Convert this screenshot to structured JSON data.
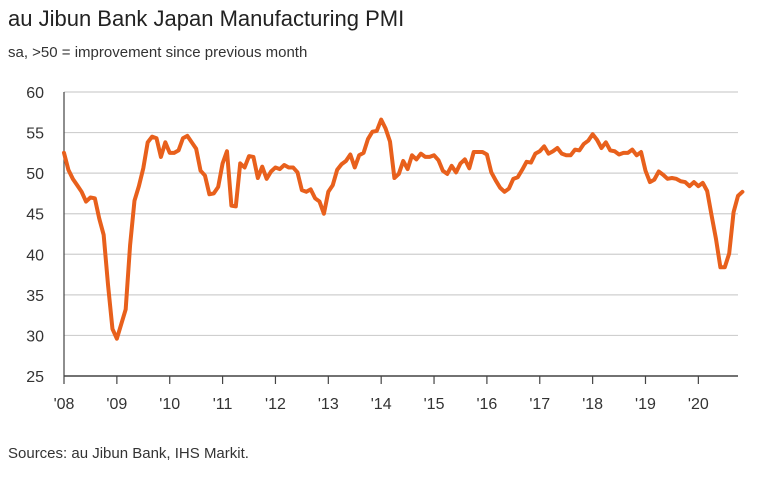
{
  "chart_data": {
    "type": "line",
    "title": "au Jibun Bank Japan Manufacturing PMI",
    "subtitle": "sa, >50 = improvement since previous month",
    "source": "Sources: au Jibun Bank, IHS Markit.",
    "xlabel": "",
    "ylabel": "",
    "ylim": [
      25,
      60
    ],
    "yticks": [
      25,
      30,
      35,
      40,
      45,
      50,
      55,
      60
    ],
    "xlim": [
      2008.0,
      2020.75
    ],
    "xticks": [
      {
        "value": 2008,
        "label": "'08"
      },
      {
        "value": 2009,
        "label": "'09"
      },
      {
        "value": 2010,
        "label": "'10"
      },
      {
        "value": 2011,
        "label": "'11"
      },
      {
        "value": 2012,
        "label": "'12"
      },
      {
        "value": 2013,
        "label": "'13"
      },
      {
        "value": 2014,
        "label": "'14"
      },
      {
        "value": 2015,
        "label": "'15"
      },
      {
        "value": 2016,
        "label": "'16"
      },
      {
        "value": 2017,
        "label": "'17"
      },
      {
        "value": 2018,
        "label": "'18"
      },
      {
        "value": 2019,
        "label": "'19"
      },
      {
        "value": 2020,
        "label": "'20"
      }
    ],
    "grid": true,
    "line_color": "#e8601c",
    "grid_color": "#cfcfcf",
    "series": [
      {
        "name": "Japan Manufacturing PMI",
        "start_year": 2008,
        "start_month": 1,
        "values": [
          52.5,
          50.4,
          49.3,
          48.5,
          47.7,
          46.5,
          47.0,
          46.9,
          44.4,
          42.4,
          36.2,
          30.8,
          29.6,
          31.4,
          33.2,
          41.1,
          46.6,
          48.4,
          50.6,
          53.8,
          54.5,
          54.3,
          52.0,
          53.8,
          52.5,
          52.5,
          52.8,
          54.3,
          54.6,
          53.8,
          53.0,
          50.3,
          49.7,
          47.4,
          47.5,
          48.3,
          51.2,
          52.7,
          46.0,
          45.9,
          51.2,
          50.7,
          52.1,
          52.0,
          49.4,
          50.8,
          49.3,
          50.2,
          50.7,
          50.5,
          51.0,
          50.7,
          50.7,
          50.1,
          47.9,
          47.7,
          48.0,
          46.9,
          46.5,
          45.0,
          47.7,
          48.5,
          50.4,
          51.1,
          51.5,
          52.3,
          50.7,
          52.2,
          52.5,
          54.2,
          55.1,
          55.2,
          56.6,
          55.5,
          53.9,
          49.4,
          49.9,
          51.5,
          50.5,
          52.2,
          51.7,
          52.4,
          52.0,
          52.0,
          52.2,
          51.6,
          50.3,
          49.9,
          50.9,
          50.1,
          51.2,
          51.7,
          50.6,
          52.6,
          52.6,
          52.6,
          52.3,
          50.1,
          49.1,
          48.2,
          47.7,
          48.1,
          49.3,
          49.5,
          50.4,
          51.4,
          51.3,
          52.4,
          52.7,
          53.3,
          52.4,
          52.7,
          53.1,
          52.4,
          52.2,
          52.2,
          52.9,
          52.8,
          53.6,
          54.0,
          54.8,
          54.1,
          53.1,
          53.8,
          52.8,
          52.7,
          52.3,
          52.5,
          52.5,
          52.9,
          52.2,
          52.6,
          50.3,
          48.9,
          49.2,
          50.2,
          49.8,
          49.3,
          49.4,
          49.3,
          49.0,
          48.9,
          48.4,
          48.9,
          48.4,
          48.8,
          47.8,
          44.8,
          41.9,
          38.4,
          38.4,
          40.1,
          45.2,
          47.2,
          47.7
        ]
      }
    ]
  }
}
